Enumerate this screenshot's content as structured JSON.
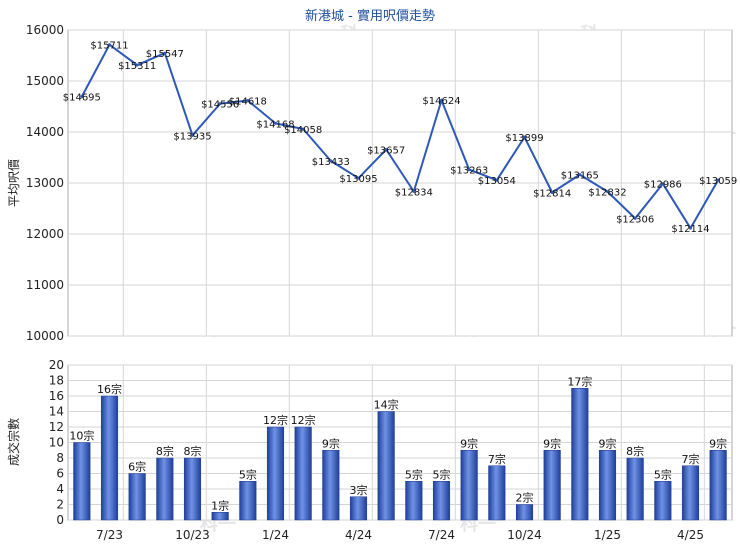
{
  "chart_data": [
    {
      "type": "line",
      "title": "新港城 - 實用呎價走勢",
      "ylabel": "平均呎價",
      "ylim": [
        10000,
        16000
      ],
      "yticks": [
        10000,
        11000,
        12000,
        13000,
        14000,
        15000,
        16000
      ],
      "grid": true,
      "series": [
        {
          "color": "#2e58b8",
          "values": [
            14695,
            15711,
            15311,
            15547,
            13935,
            14556,
            14618,
            14168,
            14058,
            13433,
            13095,
            13657,
            12834,
            14624,
            13263,
            13054,
            13899,
            12814,
            13165,
            12832,
            12306,
            12986,
            12114,
            13059
          ],
          "labels": [
            "$14695",
            "$15711",
            "$15311",
            "$15547",
            "$13935",
            "$14556",
            "$14618",
            "$14168",
            "$14058",
            "$13433",
            "$13095",
            "$13657",
            "$12834",
            "$14624",
            "$13263",
            "$13054",
            "$13899",
            "$12814",
            "$13165",
            "$12832",
            "$12306",
            "$12986",
            "$12114",
            "$13059"
          ]
        }
      ]
    },
    {
      "type": "bar",
      "ylabel": "成交宗數",
      "ylim": [
        0,
        20
      ],
      "yticks": [
        0,
        2,
        4,
        6,
        8,
        10,
        12,
        14,
        16,
        18,
        20
      ],
      "grid": true,
      "xtick_labels": [
        "7/23",
        "10/23",
        "1/24",
        "4/24",
        "7/24",
        "10/24",
        "1/25",
        "4/25"
      ],
      "xtick_positions": [
        2,
        5,
        8,
        11,
        14,
        17,
        20,
        23
      ],
      "series": [
        {
          "color": "#3a62c4",
          "values": [
            10,
            16,
            6,
            8,
            8,
            1,
            5,
            12,
            12,
            9,
            3,
            14,
            5,
            5,
            9,
            7,
            2,
            9,
            17,
            9,
            8,
            5,
            7,
            9
          ],
          "labels": [
            "10宗",
            "16宗",
            "6宗",
            "8宗",
            "8宗",
            "1宗",
            "5宗",
            "12宗",
            "12宗",
            "9宗",
            "3宗",
            "14宗",
            "5宗",
            "5宗",
            "9宗",
            "7宗",
            "2宗",
            "9宗",
            "17宗",
            "9宗",
            "8宗",
            "5宗",
            "7宗",
            "9宗"
          ]
        }
      ]
    }
  ],
  "watermark": "科一"
}
